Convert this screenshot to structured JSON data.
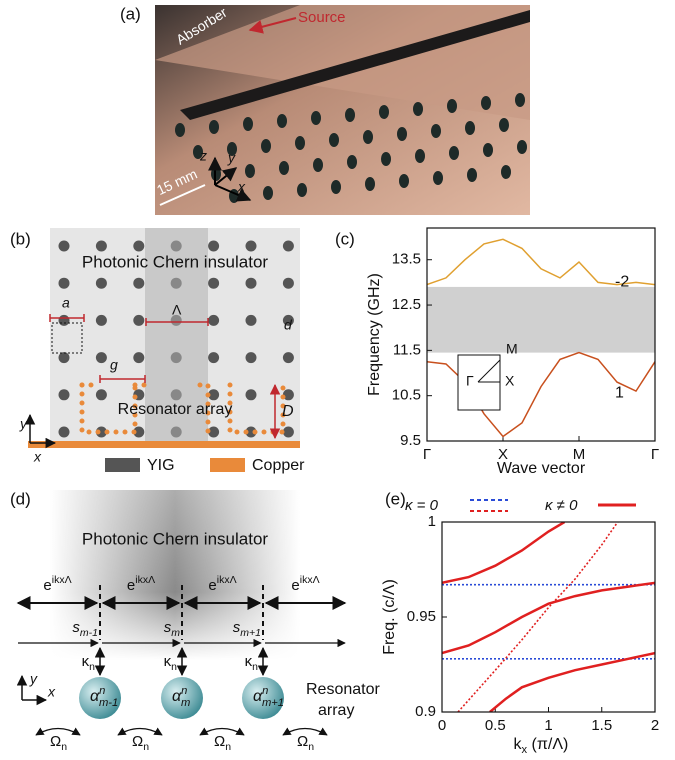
{
  "panels": {
    "a": "(a)",
    "b": "(b)",
    "c": "(c)",
    "d": "(d)",
    "e": "(e)"
  },
  "photo": {
    "absorber": "Absorber",
    "source": "Source",
    "scale": "15 mm",
    "axes": [
      "z",
      "y",
      "x"
    ]
  },
  "lattice": {
    "title": "Photonic Chern insulator",
    "a": "a",
    "lambda": "Λ",
    "d": "d",
    "g": "g",
    "resonator": "Resonator array",
    "D": "D",
    "axis_y": "y",
    "axis_x": "x",
    "legend": [
      {
        "label": "YIG",
        "color": "#555555"
      },
      {
        "label": "Copper",
        "color": "#e98a3a"
      }
    ]
  },
  "model": {
    "title": "Photonic Chern insulator",
    "phase_labels": [
      {
        "base": "e",
        "sup": "ikxΛ"
      },
      {
        "base": "e",
        "sup": "ikxΛ"
      },
      {
        "base": "e",
        "sup": "ikxΛ"
      },
      {
        "base": "e",
        "sup": "ikxΛ"
      }
    ],
    "modes": [
      {
        "base": "s",
        "sub": "m-1"
      },
      {
        "base": "s",
        "sub": "m"
      },
      {
        "base": "s",
        "sub": "m+1"
      }
    ],
    "couplings": [
      {
        "base": "κ",
        "sub": "n"
      },
      {
        "base": "κ",
        "sub": "n"
      },
      {
        "base": "κ",
        "sub": "n"
      }
    ],
    "resonators": [
      {
        "base": "α",
        "sup": "n",
        "sub": "m-1"
      },
      {
        "base": "α",
        "sup": "n",
        "sub": "m"
      },
      {
        "base": "α",
        "sup": "n",
        "sub": "m+1"
      }
    ],
    "resonator_label": [
      "Resonator",
      "array"
    ],
    "rotations": [
      {
        "base": "Ω",
        "sub": "n"
      },
      {
        "base": "Ω",
        "sub": "n"
      },
      {
        "base": "Ω",
        "sub": "n"
      },
      {
        "base": "Ω",
        "sub": "n"
      }
    ],
    "axis_y": "y",
    "axis_x": "x"
  },
  "chart_data": [
    {
      "type": "line",
      "y_label": "Frequency (GHz)",
      "x_label": "Wave vector",
      "x": [
        0,
        0.25,
        0.5,
        0.75,
        1,
        1.25,
        1.5,
        1.75,
        2,
        2.25,
        2.5,
        2.75,
        3
      ],
      "xlim": [
        0,
        3
      ],
      "xticks": [
        {
          "value": 0,
          "label": "Γ"
        },
        {
          "value": 1,
          "label": "X"
        },
        {
          "value": 2,
          "label": "M"
        },
        {
          "value": 3,
          "label": "Γ"
        }
      ],
      "ylim": [
        9.5,
        14.2
      ],
      "yticks": [
        9.5,
        10.5,
        11.5,
        12.5,
        13.5
      ],
      "band_gap": [
        11.45,
        12.9
      ],
      "band_gap_color": "#d0d0d0",
      "inset_labels": [
        "M",
        "Γ",
        "X"
      ],
      "series": [
        {
          "label": "-2",
          "color": "#e0a030",
          "values": [
            12.95,
            13.1,
            13.5,
            13.85,
            13.95,
            13.75,
            13.3,
            13.1,
            13.45,
            13.0,
            12.95,
            13.0,
            12.95
          ]
        },
        {
          "label": "1",
          "color": "#c8501e",
          "values": [
            11.25,
            11.2,
            10.8,
            10.1,
            9.6,
            9.9,
            10.7,
            11.3,
            11.45,
            11.3,
            10.8,
            10.6,
            11.25
          ]
        }
      ]
    },
    {
      "type": "line",
      "y_label": "Freq. (c/Λ)",
      "x_label": {
        "base": "k",
        "sub": "x",
        "rest": " (π/Λ)"
      },
      "xlim": [
        0,
        2
      ],
      "xticks": [
        0,
        0.5,
        1,
        1.5,
        2
      ],
      "ylim": [
        0.9,
        1
      ],
      "yticks": [
        0.9,
        0.95,
        1
      ],
      "legend": [
        {
          "label": "κ = 0",
          "colors": [
            "#2a4bd7",
            "#e02020"
          ],
          "dash": true
        },
        {
          "label": "κ ≠ 0",
          "colors": [
            "#e02020"
          ],
          "dash": false
        }
      ],
      "series": [
        {
          "color": "#2a4bd7",
          "dash": true,
          "x": [
            0,
            2
          ],
          "values": [
            0.967,
            0.967
          ]
        },
        {
          "color": "#2a4bd7",
          "dash": true,
          "x": [
            0,
            2
          ],
          "values": [
            0.928,
            0.928
          ]
        },
        {
          "color": "#e02020",
          "dash": true,
          "x": [
            0.15,
            0.5,
            0.75,
            1,
            1.25,
            1.5,
            1.65
          ],
          "values": [
            0.9,
            0.922,
            0.938,
            0.955,
            0.97,
            0.988,
            1
          ]
        },
        {
          "color": "#e02020",
          "dash": false,
          "x": [
            0,
            0.25,
            0.5,
            0.75,
            1,
            1.15
          ],
          "values": [
            0.968,
            0.971,
            0.977,
            0.985,
            0.995,
            1
          ]
        },
        {
          "color": "#e02020",
          "dash": false,
          "x": [
            0,
            0.25,
            0.5,
            0.75,
            1,
            1.25,
            1.5,
            1.75,
            2
          ],
          "values": [
            0.931,
            0.935,
            0.942,
            0.95,
            0.957,
            0.961,
            0.964,
            0.966,
            0.968
          ]
        },
        {
          "color": "#e02020",
          "dash": false,
          "x": [
            0.45,
            0.6,
            0.75,
            1,
            1.25,
            1.5,
            1.75,
            2
          ],
          "values": [
            0.9,
            0.907,
            0.913,
            0.918,
            0.922,
            0.925,
            0.928,
            0.931
          ]
        }
      ]
    }
  ]
}
